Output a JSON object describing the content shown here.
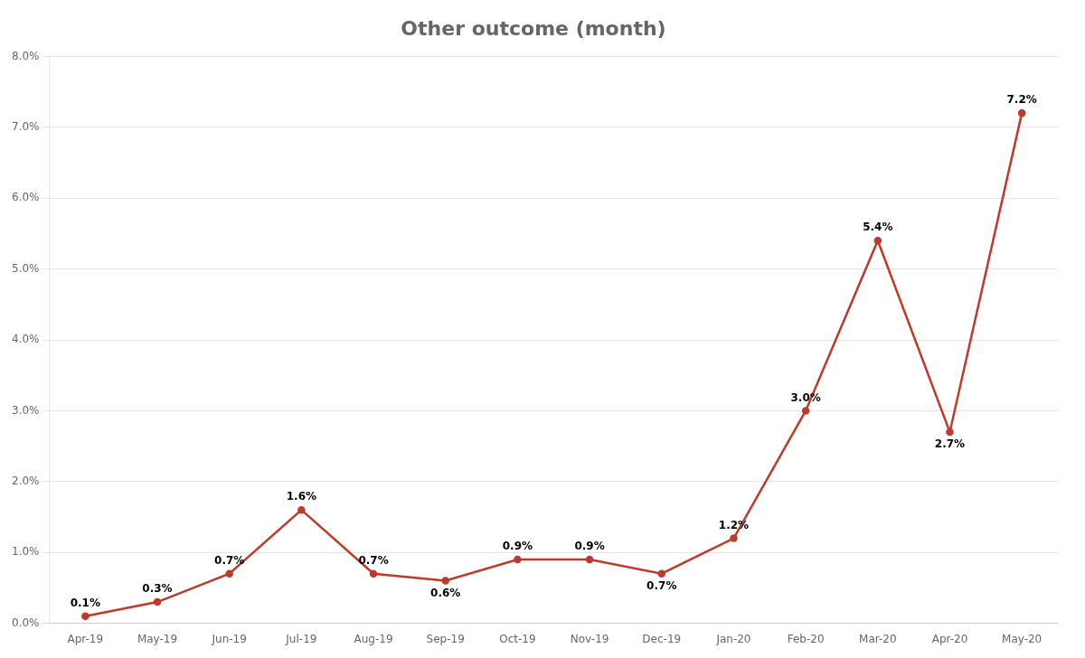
{
  "chart_data": {
    "type": "line",
    "title": "Other outcome (month)",
    "categories": [
      "Apr-19",
      "May-19",
      "Jun-19",
      "Jul-19",
      "Aug-19",
      "Sep-19",
      "Oct-19",
      "Nov-19",
      "Dec-19",
      "Jan-20",
      "Feb-20",
      "Mar-20",
      "Apr-20",
      "May-20"
    ],
    "values": [
      0.001,
      0.003,
      0.007,
      0.016,
      0.007,
      0.006,
      0.009,
      0.009,
      0.007,
      0.012,
      0.03,
      0.054,
      0.027,
      0.072
    ],
    "value_labels": [
      "0.1%",
      "0.3%",
      "0.7%",
      "1.6%",
      "0.7%",
      "0.6%",
      "0.9%",
      "0.9%",
      "0.7%",
      "1.2%",
      "3.0%",
      "5.4%",
      "2.7%",
      "7.2%"
    ],
    "color": "#c0392b",
    "ylim": [
      0,
      0.08
    ],
    "yticks": [
      {
        "value": 0.0,
        "label": "0.0%"
      },
      {
        "value": 0.01,
        "label": "1.0%"
      },
      {
        "value": 0.02,
        "label": "2.0%"
      },
      {
        "value": 0.03,
        "label": "3.0%"
      },
      {
        "value": 0.04,
        "label": "4.0%"
      },
      {
        "value": 0.05,
        "label": "5.0%"
      },
      {
        "value": 0.06,
        "label": "6.0%"
      },
      {
        "value": 0.07,
        "label": "7.0%"
      },
      {
        "value": 0.08,
        "label": "8.0%"
      }
    ],
    "grid": true,
    "data_labels": true
  }
}
